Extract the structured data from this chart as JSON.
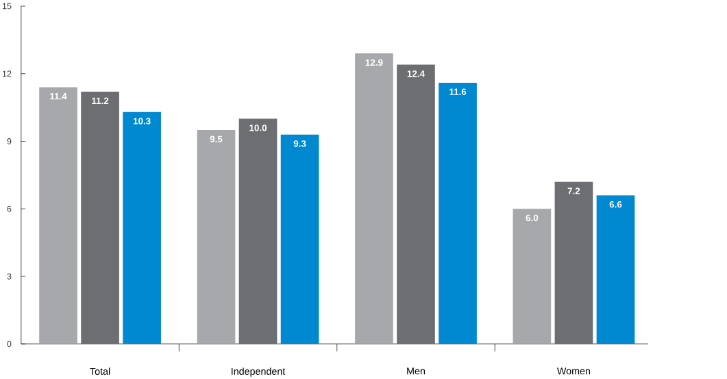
{
  "chart_data": {
    "type": "bar",
    "categories": [
      "Total",
      "Independent",
      "Men",
      "Women"
    ],
    "series": [
      {
        "color": "#a7a8ab",
        "values": [
          11.4,
          9.5,
          12.9,
          6.0
        ],
        "value_labels": [
          "11.4",
          "9.5",
          "12.9",
          "6.0"
        ]
      },
      {
        "color": "#6d6e72",
        "values": [
          11.2,
          10.0,
          12.4,
          7.2
        ],
        "value_labels": [
          "11.2",
          "10.0",
          "12.4",
          "7.2"
        ]
      },
      {
        "color": "#0089d1",
        "values": [
          10.3,
          9.3,
          11.6,
          6.6
        ],
        "value_labels": [
          "10.3",
          "9.3",
          "11.6",
          "6.6"
        ]
      }
    ],
    "ylim": [
      0,
      15
    ],
    "yticks": [
      0,
      3,
      6,
      9,
      12,
      15
    ],
    "grid": false
  }
}
